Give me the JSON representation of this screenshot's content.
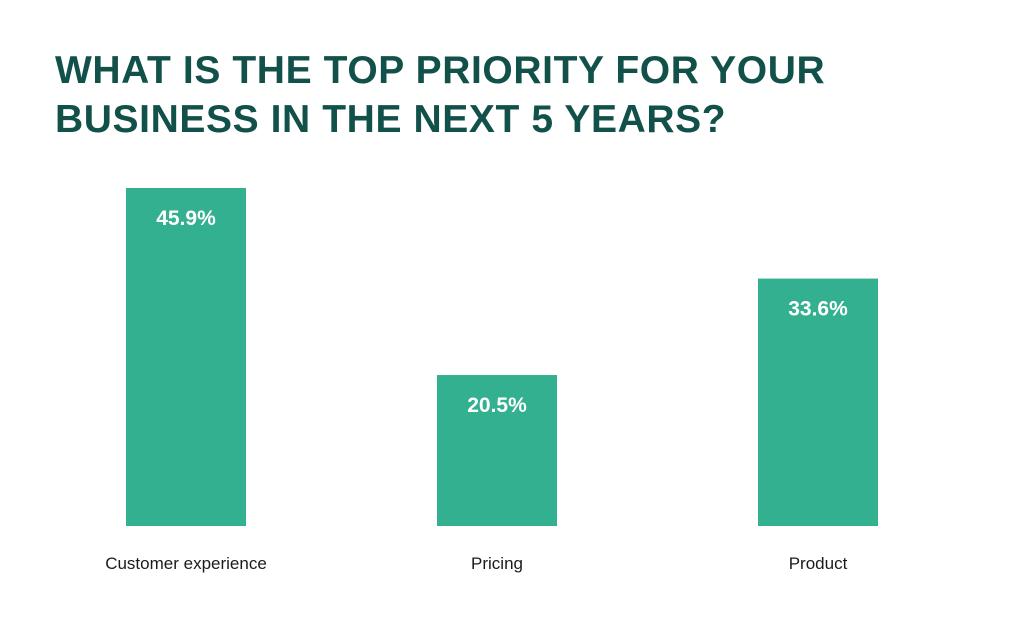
{
  "chart_data": {
    "type": "bar",
    "title": "WHAT IS THE TOP PRIORITY FOR YOUR BUSINESS IN THE NEXT 5 YEARS?",
    "title_lines": [
      "WHAT IS THE TOP PRIORITY FOR YOUR",
      "BUSINESS IN THE NEXT 5 YEARS?"
    ],
    "categories": [
      "Customer experience",
      "Pricing",
      "Product"
    ],
    "values": [
      45.9,
      20.5,
      33.6
    ],
    "data_labels": [
      "45.9%",
      "20.5%",
      "33.6%"
    ],
    "xlabel": "",
    "ylabel": "",
    "ylim": [
      0,
      45.9
    ],
    "grid": false,
    "legend": "none",
    "colors": {
      "bar": "#33b08f",
      "title": "#12504a",
      "category_text": "#1b1b1b",
      "data_label_text": "#ffffff"
    }
  }
}
